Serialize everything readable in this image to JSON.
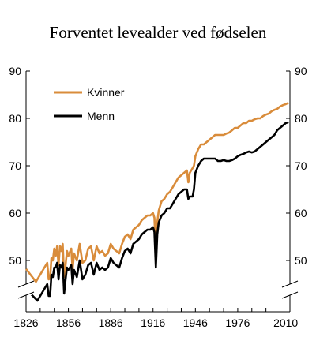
{
  "chart_data": {
    "type": "line",
    "title": "Forventet levealder ved fødselen",
    "xlabel": "",
    "ylabel": "",
    "xlim": [
      1826,
      2013
    ],
    "ylim": [
      40,
      90
    ],
    "axis_break": "below 45 (broken axis)",
    "x_ticks": [
      "1826",
      "1856",
      "1886",
      "1916",
      "1946",
      "1976",
      "2010"
    ],
    "y_ticks_left": [
      "90",
      "80",
      "70",
      "60",
      "50"
    ],
    "y_ticks_right": [
      "90",
      "80",
      "70",
      "60",
      "50"
    ],
    "grid": false,
    "legend_position": "top-left",
    "series": [
      {
        "name": "Kvinner",
        "color": "#D98C3B",
        "points": [
          [
            1826,
            48.2
          ],
          [
            1833,
            45.5
          ],
          [
            1841,
            49.5
          ],
          [
            1842,
            46.0
          ],
          [
            1843,
            46.2
          ],
          [
            1844,
            50.5
          ],
          [
            1845,
            50.0
          ],
          [
            1846,
            52.5
          ],
          [
            1847,
            51.0
          ],
          [
            1848,
            53.0
          ],
          [
            1849,
            49.0
          ],
          [
            1850,
            53.0
          ],
          [
            1851,
            52.0
          ],
          [
            1852,
            53.5
          ],
          [
            1853,
            46.5
          ],
          [
            1854,
            49.0
          ],
          [
            1855,
            52.0
          ],
          [
            1856,
            51.0
          ],
          [
            1858,
            52.5
          ],
          [
            1859,
            48.0
          ],
          [
            1860,
            51.5
          ],
          [
            1862,
            50.0
          ],
          [
            1864,
            53.5
          ],
          [
            1866,
            49.5
          ],
          [
            1868,
            50.0
          ],
          [
            1870,
            52.5
          ],
          [
            1872,
            53.0
          ],
          [
            1874,
            50.0
          ],
          [
            1876,
            53.0
          ],
          [
            1878,
            51.5
          ],
          [
            1880,
            52.0
          ],
          [
            1882,
            51.0
          ],
          [
            1884,
            51.5
          ],
          [
            1886,
            53.5
          ],
          [
            1888,
            52.5
          ],
          [
            1890,
            52.0
          ],
          [
            1892,
            51.5
          ],
          [
            1894,
            53.5
          ],
          [
            1896,
            55.0
          ],
          [
            1898,
            55.5
          ],
          [
            1900,
            54.5
          ],
          [
            1902,
            56.5
          ],
          [
            1904,
            57.0
          ],
          [
            1906,
            57.5
          ],
          [
            1908,
            58.5
          ],
          [
            1910,
            59.0
          ],
          [
            1912,
            59.5
          ],
          [
            1914,
            59.5
          ],
          [
            1916,
            60.0
          ],
          [
            1917,
            59.0
          ],
          [
            1918,
            51.0
          ],
          [
            1919,
            58.0
          ],
          [
            1920,
            60.5
          ],
          [
            1922,
            62.5
          ],
          [
            1924,
            63.0
          ],
          [
            1926,
            64.0
          ],
          [
            1928,
            64.5
          ],
          [
            1930,
            65.5
          ],
          [
            1932,
            66.5
          ],
          [
            1934,
            67.5
          ],
          [
            1936,
            68.0
          ],
          [
            1938,
            68.5
          ],
          [
            1940,
            69.0
          ],
          [
            1941,
            66.5
          ],
          [
            1942,
            68.5
          ],
          [
            1944,
            69.5
          ],
          [
            1945,
            70.0
          ],
          [
            1946,
            72.0
          ],
          [
            1948,
            73.5
          ],
          [
            1950,
            74.5
          ],
          [
            1952,
            74.5
          ],
          [
            1954,
            75.0
          ],
          [
            1956,
            75.5
          ],
          [
            1958,
            76.0
          ],
          [
            1960,
            76.5
          ],
          [
            1962,
            76.5
          ],
          [
            1964,
            76.5
          ],
          [
            1966,
            76.5
          ],
          [
            1968,
            76.8
          ],
          [
            1970,
            77.0
          ],
          [
            1972,
            77.5
          ],
          [
            1974,
            78.0
          ],
          [
            1976,
            78.0
          ],
          [
            1978,
            78.5
          ],
          [
            1980,
            79.0
          ],
          [
            1982,
            79.0
          ],
          [
            1984,
            79.5
          ],
          [
            1986,
            79.5
          ],
          [
            1988,
            79.8
          ],
          [
            1990,
            80.0
          ],
          [
            1992,
            80.0
          ],
          [
            1994,
            80.5
          ],
          [
            1996,
            80.8
          ],
          [
            1998,
            81.0
          ],
          [
            2000,
            81.5
          ],
          [
            2002,
            81.8
          ],
          [
            2004,
            82.0
          ],
          [
            2006,
            82.5
          ],
          [
            2008,
            82.8
          ],
          [
            2010,
            83.0
          ],
          [
            2012,
            83.3
          ]
        ]
      },
      {
        "name": "Menn",
        "color": "#000000",
        "points": [
          [
            1826,
            44.0
          ],
          [
            1834,
            41.5
          ],
          [
            1841,
            45.0
          ],
          [
            1842,
            42.5
          ],
          [
            1843,
            42.5
          ],
          [
            1844,
            47.0
          ],
          [
            1845,
            46.5
          ],
          [
            1846,
            48.5
          ],
          [
            1847,
            48.5
          ],
          [
            1848,
            49.5
          ],
          [
            1849,
            46.0
          ],
          [
            1850,
            49.0
          ],
          [
            1851,
            48.5
          ],
          [
            1852,
            49.5
          ],
          [
            1853,
            43.0
          ],
          [
            1854,
            46.0
          ],
          [
            1855,
            48.5
          ],
          [
            1856,
            48.0
          ],
          [
            1858,
            49.0
          ],
          [
            1859,
            45.0
          ],
          [
            1860,
            48.0
          ],
          [
            1862,
            46.5
          ],
          [
            1864,
            50.0
          ],
          [
            1866,
            46.0
          ],
          [
            1868,
            47.0
          ],
          [
            1870,
            49.0
          ],
          [
            1872,
            49.5
          ],
          [
            1874,
            47.0
          ],
          [
            1876,
            49.5
          ],
          [
            1878,
            48.0
          ],
          [
            1880,
            48.5
          ],
          [
            1882,
            48.0
          ],
          [
            1884,
            48.5
          ],
          [
            1886,
            50.5
          ],
          [
            1888,
            49.5
          ],
          [
            1890,
            49.0
          ],
          [
            1892,
            48.5
          ],
          [
            1894,
            50.5
          ],
          [
            1896,
            52.0
          ],
          [
            1898,
            52.5
          ],
          [
            1900,
            51.5
          ],
          [
            1902,
            53.5
          ],
          [
            1904,
            54.0
          ],
          [
            1906,
            54.5
          ],
          [
            1908,
            55.5
          ],
          [
            1910,
            56.0
          ],
          [
            1912,
            56.5
          ],
          [
            1914,
            56.5
          ],
          [
            1916,
            57.0
          ],
          [
            1917,
            56.0
          ],
          [
            1918,
            48.5
          ],
          [
            1919,
            55.5
          ],
          [
            1920,
            58.0
          ],
          [
            1922,
            59.5
          ],
          [
            1924,
            60.0
          ],
          [
            1926,
            61.0
          ],
          [
            1928,
            61.0
          ],
          [
            1930,
            62.0
          ],
          [
            1932,
            63.0
          ],
          [
            1934,
            64.0
          ],
          [
            1936,
            64.5
          ],
          [
            1938,
            65.0
          ],
          [
            1940,
            65.0
          ],
          [
            1941,
            63.0
          ],
          [
            1942,
            63.5
          ],
          [
            1944,
            63.5
          ],
          [
            1945,
            65.0
          ],
          [
            1946,
            68.5
          ],
          [
            1948,
            70.0
          ],
          [
            1950,
            71.0
          ],
          [
            1952,
            71.5
          ],
          [
            1954,
            71.5
          ],
          [
            1956,
            71.5
          ],
          [
            1958,
            71.5
          ],
          [
            1960,
            71.5
          ],
          [
            1962,
            71.0
          ],
          [
            1964,
            71.0
          ],
          [
            1966,
            71.2
          ],
          [
            1968,
            71.0
          ],
          [
            1970,
            71.0
          ],
          [
            1972,
            71.2
          ],
          [
            1974,
            71.5
          ],
          [
            1976,
            72.0
          ],
          [
            1978,
            72.3
          ],
          [
            1980,
            72.5
          ],
          [
            1982,
            72.8
          ],
          [
            1984,
            73.0
          ],
          [
            1986,
            72.8
          ],
          [
            1988,
            73.0
          ],
          [
            1990,
            73.5
          ],
          [
            1992,
            74.0
          ],
          [
            1994,
            74.5
          ],
          [
            1996,
            75.0
          ],
          [
            1998,
            75.5
          ],
          [
            2000,
            76.0
          ],
          [
            2002,
            76.5
          ],
          [
            2004,
            77.5
          ],
          [
            2006,
            78.0
          ],
          [
            2008,
            78.5
          ],
          [
            2010,
            79.0
          ],
          [
            2012,
            79.2
          ]
        ]
      }
    ]
  }
}
